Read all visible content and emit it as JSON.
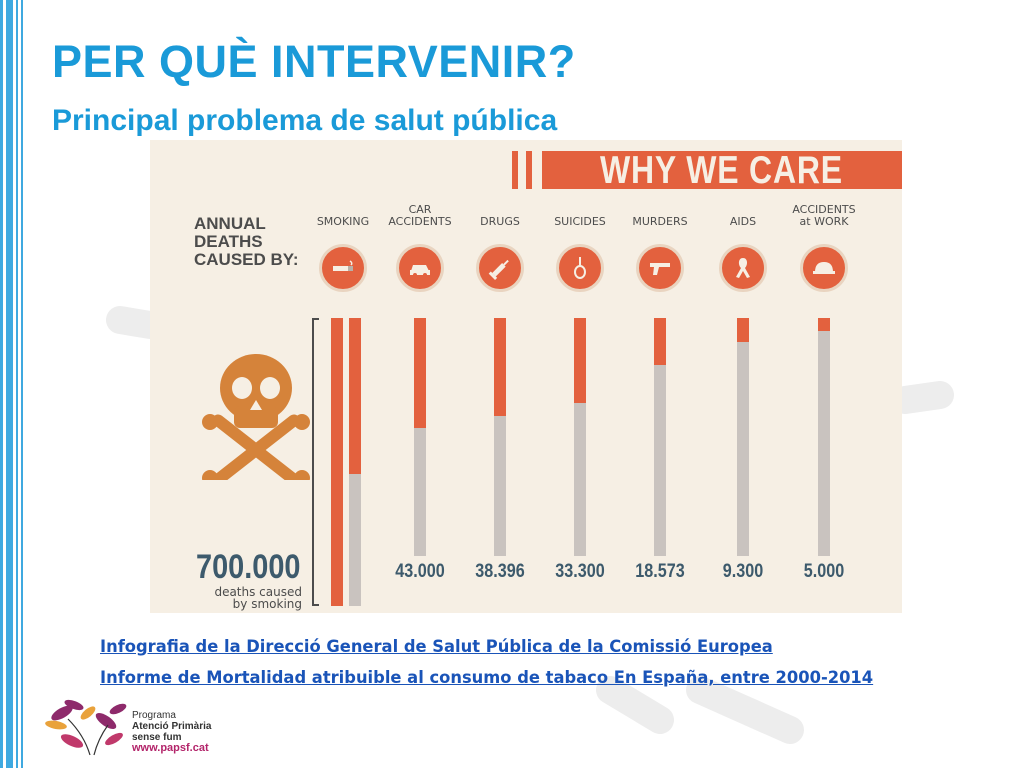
{
  "slide": {
    "title": "PER QUÈ INTERVENIR?",
    "subtitle": "Principal problema de salut pública"
  },
  "infographic": {
    "heading": "WHY WE CARE",
    "annual_label": [
      "ANNUAL",
      "DEATHS",
      "CAUSED BY:"
    ],
    "smoking_total": "700.000",
    "smoking_caption": [
      "deaths caused",
      "by smoking"
    ]
  },
  "chart_data": {
    "type": "bar",
    "title": "WHY WE CARE",
    "ylabel": "ANNUAL DEATHS CAUSED BY:",
    "categories": [
      "SMOKING",
      "CAR ACCIDENTS",
      "DRUGS",
      "SUICIDES",
      "MURDERS",
      "AIDS",
      "ACCIDENTS at WORK"
    ],
    "category_lines": [
      [
        "SMOKING"
      ],
      [
        "CAR",
        "ACCIDENTS"
      ],
      [
        "DRUGS"
      ],
      [
        "SUICIDES"
      ],
      [
        "MURDERS"
      ],
      [
        "AIDS"
      ],
      [
        "ACCIDENTS",
        "at WORK"
      ]
    ],
    "values": [
      700000,
      43000,
      38396,
      33300,
      18573,
      9300,
      5000
    ],
    "value_labels": [
      "700.000",
      "43.000",
      "38.396",
      "33.300",
      "18.573",
      "9.300",
      "5.000"
    ],
    "ylim": [
      0,
      700000
    ],
    "grid": false,
    "icons": [
      "cigarette-icon",
      "car-icon",
      "syringe-icon",
      "noose-icon",
      "gun-icon",
      "ribbon-icon",
      "hard-hat-icon"
    ]
  },
  "links": [
    "Infografia  de la Direcció General de Salut Pública de la Comissió Europea",
    "Informe de Mortalidad atribuible al consumo de  tabaco En España, entre 2000-2014"
  ],
  "logo": {
    "lines": [
      "Programa",
      "Atenció Primària",
      "sense fum"
    ],
    "web": "www.papsf.cat"
  },
  "colors": {
    "accent": "#1a9ad8",
    "chart_orange": "#e3613e",
    "chart_grey": "#c9c3bf",
    "infographic_bg": "#f6efe4",
    "value_text": "#3d5a6c",
    "link": "#1a54b8"
  }
}
